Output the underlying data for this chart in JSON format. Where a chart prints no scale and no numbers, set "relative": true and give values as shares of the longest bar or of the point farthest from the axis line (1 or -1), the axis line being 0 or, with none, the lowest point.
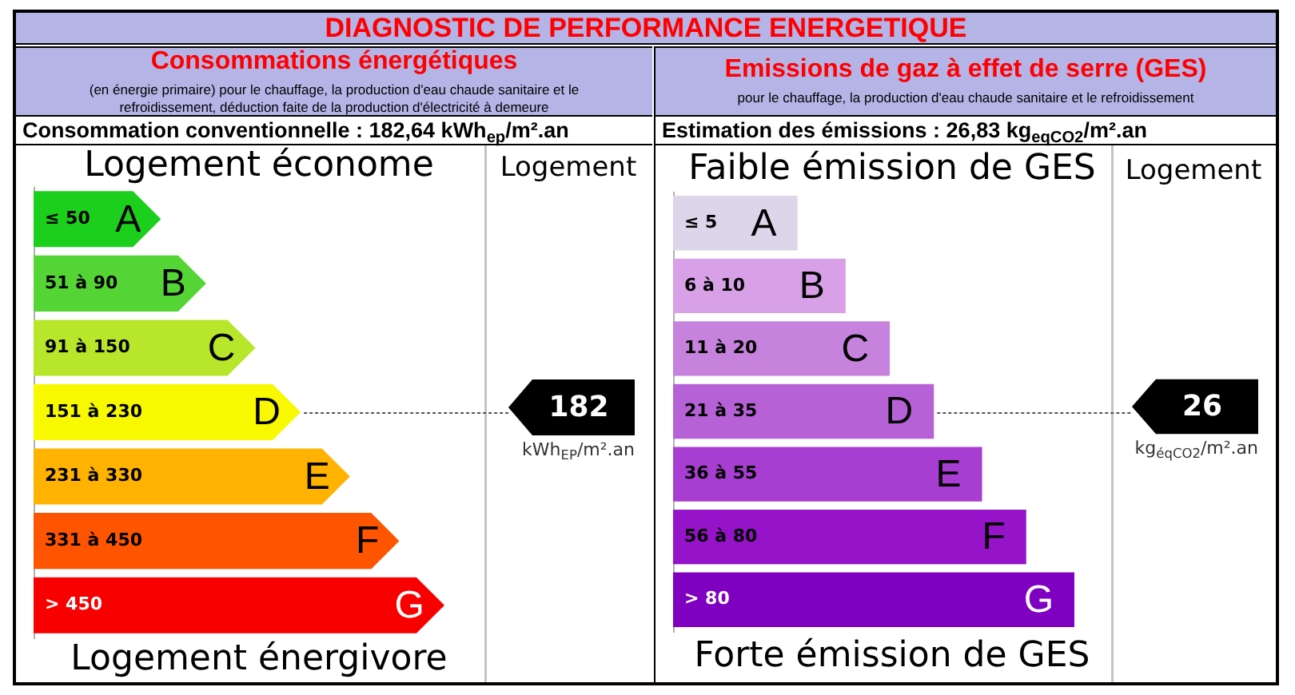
{
  "chart_data": [
    {
      "type": "bar",
      "orientation": "horizontal",
      "relative": true,
      "title": "Consommations énergétiques",
      "subtitle": "(en énergie primaire) pour le chauffage, la production d'eau chaude sanitaire et le refroidissement, déduction faite de la production d'électricité à demeure",
      "categories": [
        "≤ 50",
        "51 à 90",
        "91 à 150",
        "151 à 230",
        "231 à 330",
        "331 à 450",
        "> 450"
      ],
      "values": [
        0.31,
        0.42,
        0.54,
        0.65,
        0.77,
        0.89,
        1
      ],
      "colors": [
        "#1ccf1c",
        "#55d435",
        "#b8e62a",
        "#f8f800",
        "#ffb200",
        "#ff5500",
        "#f80000"
      ],
      "ref_lines": [
        {
          "axis": "y",
          "value": "151 à 230",
          "label": "182",
          "line_style": "dotted"
        }
      ],
      "annotations": [
        "DIAGNOSTIC DE PERFORMANCE ENERGETIQUE",
        "Consommation conventionnelle : 182,64 kWh$_{ep}$/m².an",
        "Logement économe",
        "Logement énergivore",
        "Logement",
        "kWh$_{EP}$/m².an",
        {
          "text": "A",
          "y": "≤ 50"
        },
        {
          "text": "B",
          "y": "51 à 90"
        },
        {
          "text": "C",
          "y": "91 à 150"
        },
        {
          "text": "D",
          "y": "151 à 230"
        },
        {
          "text": "E",
          "y": "231 à 330"
        },
        {
          "text": "F",
          "y": "331 à 450"
        },
        {
          "text": "G",
          "y": "> 450"
        }
      ]
    },
    {
      "type": "bar",
      "orientation": "horizontal",
      "relative": true,
      "title": "Emissions de gaz à effet de serre (GES)",
      "subtitle": "pour le chauffage, la production d'eau chaude sanitaire et le refroidissement",
      "categories": [
        "≤ 5",
        "6 à 10",
        "11 à 20",
        "21 à 35",
        "36 à 55",
        "56 à 80",
        "> 80"
      ],
      "values": [
        0.31,
        0.43,
        0.54,
        0.65,
        0.77,
        0.88,
        1
      ],
      "colors": [
        "#ddd5ea",
        "#d8a0e6",
        "#c682dc",
        "#b662d6",
        "#a83dd2",
        "#9513c8",
        "#8000c2"
      ],
      "ref_lines": [
        {
          "axis": "y",
          "value": "21 à 35",
          "label": "26",
          "line_style": "dotted"
        }
      ],
      "annotations": [
        "Estimation des émissions : 26,83 kg$_{eqCO2}$/m².an",
        "Faible émission de GES",
        "Forte émission de GES",
        "Logement",
        "kg$_{éqCO2}$/m².an",
        {
          "text": "A",
          "y": "≤ 5"
        },
        {
          "text": "B",
          "y": "6 à 10"
        },
        {
          "text": "C",
          "y": "11 à 20"
        },
        {
          "text": "D",
          "y": "21 à 35"
        },
        {
          "text": "E",
          "y": "36 à 55"
        },
        {
          "text": "F",
          "y": "56 à 80"
        },
        {
          "text": "G",
          "y": "> 80"
        }
      ]
    }
  ]
}
